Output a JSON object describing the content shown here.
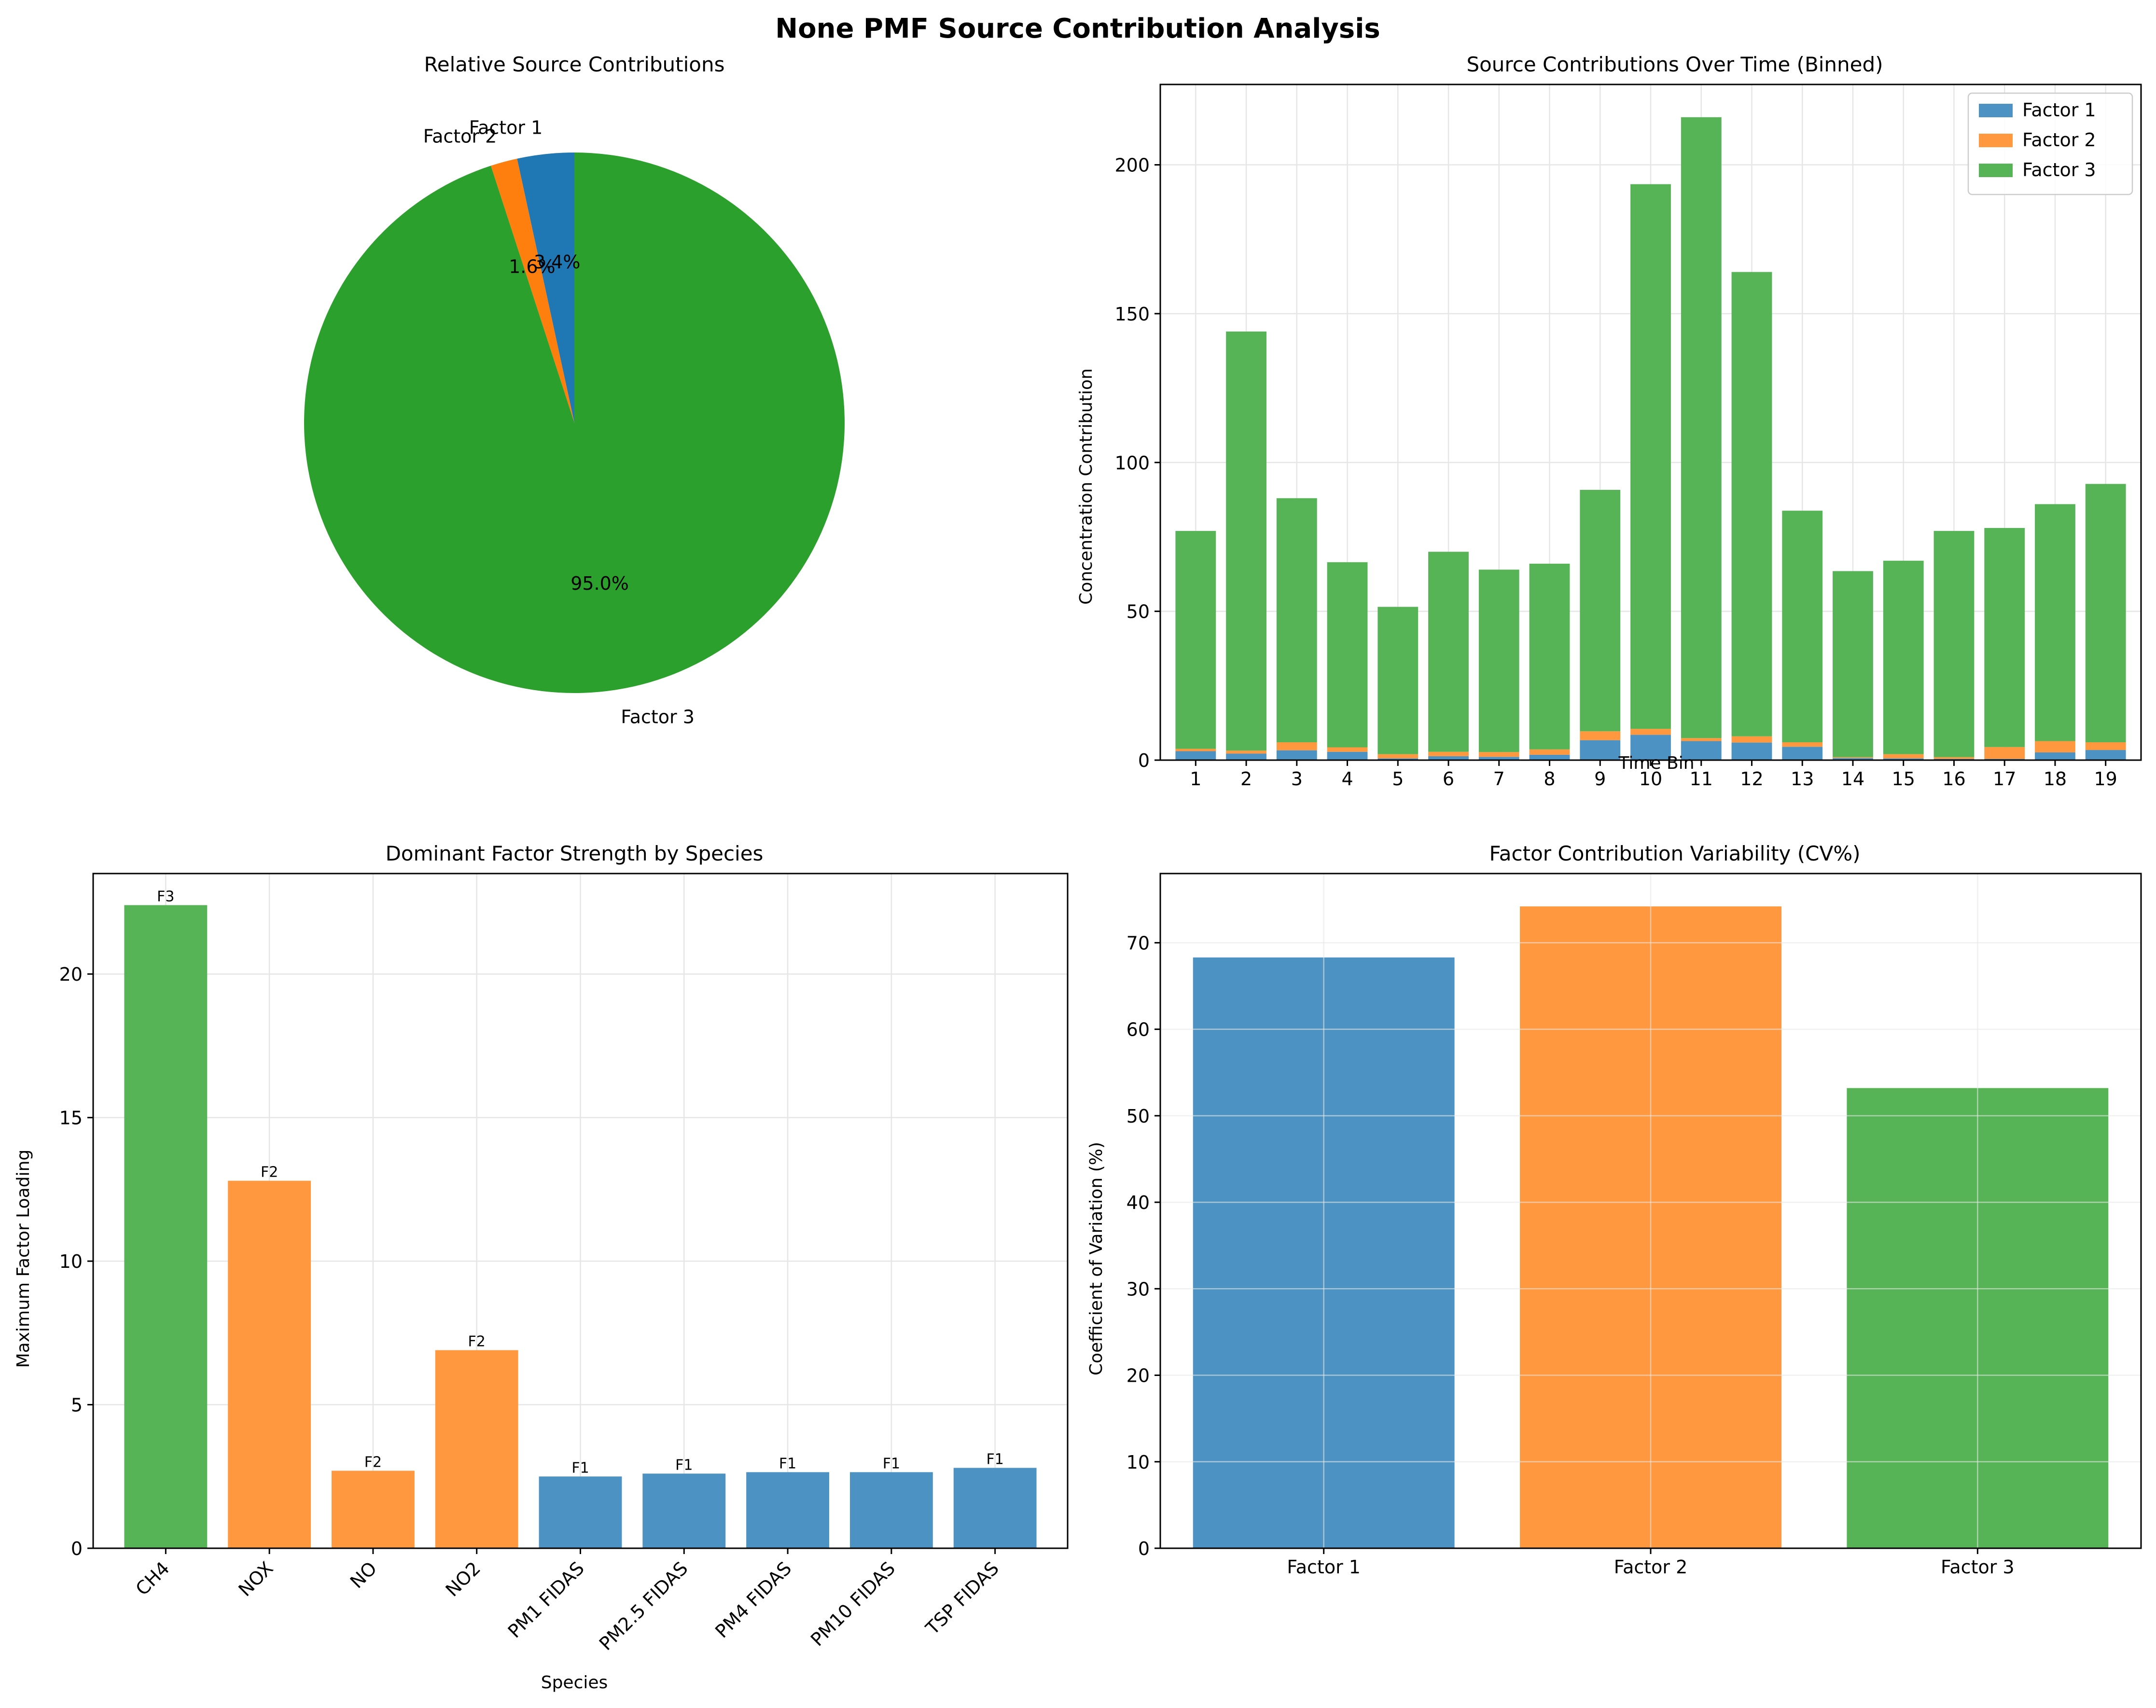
{
  "suptitle": "None PMF Source Contribution Analysis",
  "colors": {
    "factor1_pie": "#1f77b4",
    "factor2_pie": "#ff7f0e",
    "factor3_pie": "#2ca02c",
    "factor1_bar": "#4c93c3",
    "factor2_bar": "#ff983e",
    "factor3_bar": "#56b356",
    "grid": "#e6e6e6"
  },
  "chart_data": [
    {
      "type": "pie",
      "title": "Relative Source Contributions",
      "labels": [
        "Factor 1",
        "Factor 2",
        "Factor 3"
      ],
      "values": [
        3.4,
        1.6,
        95.0
      ],
      "pct_labels": [
        "3.4%",
        "1.6%",
        "95.0%"
      ],
      "start_angle_deg": 90,
      "direction": "counterclockwise"
    },
    {
      "type": "bar",
      "stacked": true,
      "title": "Source Contributions Over Time (Binned)",
      "xlabel": "Time Bin",
      "ylabel": "Concentration Contribution",
      "categories": [
        "1",
        "2",
        "3",
        "4",
        "5",
        "6",
        "7",
        "8",
        "9",
        "10",
        "11",
        "12",
        "13",
        "14",
        "15",
        "16",
        "17",
        "18",
        "19"
      ],
      "series": [
        {
          "name": "Factor 1",
          "values": [
            3.0,
            2.2,
            3.3,
            2.8,
            0.6,
            1.3,
            1.1,
            1.8,
            6.7,
            8.5,
            6.4,
            5.9,
            4.5,
            0.7,
            0.6,
            0.4,
            0.4,
            2.6,
            3.4
          ]
        },
        {
          "name": "Factor 2",
          "values": [
            0.8,
            1.0,
            2.7,
            1.5,
            1.4,
            1.5,
            1.6,
            1.8,
            3.0,
            2.0,
            1.0,
            2.1,
            1.5,
            0.3,
            1.4,
            0.6,
            4.0,
            3.8,
            2.6
          ]
        },
        {
          "name": "Factor 3",
          "values": [
            73.2,
            140.8,
            82.0,
            62.2,
            49.5,
            67.2,
            61.3,
            62.4,
            81.1,
            183.0,
            208.6,
            156.0,
            77.8,
            62.5,
            65.0,
            76.0,
            73.6,
            79.6,
            86.8
          ]
        }
      ],
      "yticks": [
        0,
        50,
        100,
        150,
        200
      ],
      "ylim": [
        0,
        227
      ],
      "legend": "top-right"
    },
    {
      "type": "bar",
      "title": "Dominant Factor Strength by Species",
      "xlabel": "Species",
      "ylabel": "Maximum Factor Loading",
      "categories": [
        "CH4",
        "NOX",
        "NO",
        "NO2",
        "PM1 FIDAS",
        "PM2.5 FIDAS",
        "PM4 FIDAS",
        "PM10 FIDAS",
        "TSP FIDAS"
      ],
      "values": [
        22.4,
        12.8,
        2.7,
        6.9,
        2.5,
        2.6,
        2.65,
        2.65,
        2.8
      ],
      "bar_labels": [
        "F3",
        "F2",
        "F2",
        "F2",
        "F1",
        "F1",
        "F1",
        "F1",
        "F1"
      ],
      "yticks": [
        0,
        5,
        10,
        15,
        20
      ],
      "ylim": [
        0,
        23.5
      ]
    },
    {
      "type": "bar",
      "title": "Factor Contribution Variability (CV%)",
      "xlabel": "",
      "ylabel": "Coefficient of Variation (%)",
      "categories": [
        "Factor 1",
        "Factor 2",
        "Factor 3"
      ],
      "values": [
        68.3,
        74.2,
        53.2
      ],
      "yticks": [
        0,
        10,
        20,
        30,
        40,
        50,
        60,
        70
      ],
      "ylim": [
        0,
        78
      ]
    }
  ]
}
